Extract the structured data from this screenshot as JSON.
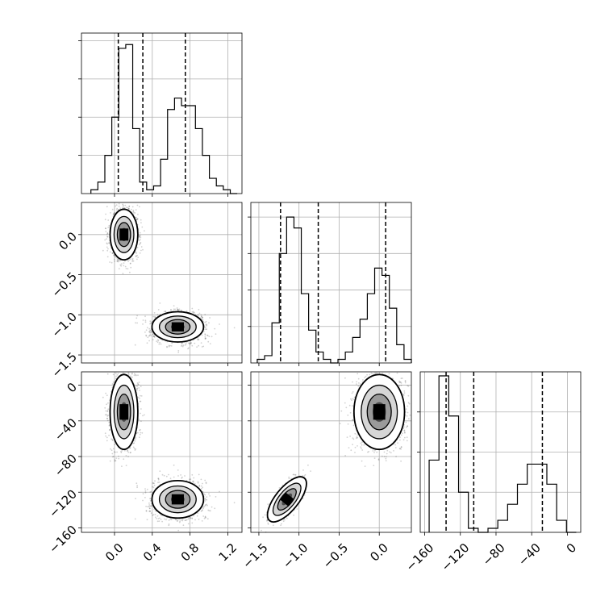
{
  "chart_data": {
    "type": "corner",
    "title": "",
    "grid": true,
    "parameters": [
      {
        "range": [
          -0.35,
          1.35
        ],
        "ticks": [
          0.0,
          0.4,
          0.8,
          1.2
        ],
        "tick_labels": [
          "0.0",
          "0.4",
          "0.8",
          "1.2"
        ],
        "quantiles": [
          0.04,
          0.3,
          0.75
        ],
        "hist_range": [
          -0.25,
          1.3
        ],
        "hist_counts": [
          1,
          3,
          10,
          20,
          38,
          39,
          17,
          3,
          1,
          2,
          9,
          22,
          25,
          23,
          23,
          17,
          10,
          4,
          2,
          1,
          0
        ],
        "hist_max": 42
      },
      {
        "range": [
          -1.6,
          0.4
        ],
        "ticks": [
          -1.5,
          -1.0,
          -0.5,
          0.0
        ],
        "tick_labels": [
          "−1.5",
          "−1.0",
          "−0.5",
          "0.0"
        ],
        "quantiles": [
          -1.23,
          -0.76,
          0.08
        ],
        "hist_range": [
          -1.52,
          0.4
        ],
        "hist_counts": [
          1,
          2,
          11,
          30,
          40,
          37,
          19,
          9,
          3,
          1,
          0,
          1,
          3,
          7,
          12,
          19,
          26,
          24,
          15,
          5,
          1
        ],
        "hist_max": 44
      },
      {
        "range": [
          -165,
          15
        ],
        "ticks": [
          -160,
          -120,
          -80,
          -40,
          0
        ],
        "tick_labels": [
          "−160",
          "−120",
          "−80",
          "−40",
          "0"
        ],
        "quantiles": [
          -136,
          -105,
          -28
        ],
        "hist_range": [
          -155,
          10
        ],
        "hist_counts": [
          18,
          39,
          29,
          10,
          1,
          0,
          1,
          3,
          7,
          12,
          17,
          17,
          12,
          3,
          0
        ],
        "hist_max": 40
      }
    ],
    "modes": [
      {
        "mean": [
          0.1,
          0.0,
          -30
        ],
        "sd": [
          0.07,
          0.15,
          20
        ],
        "corr": [
          [
            1,
            0,
            0
          ],
          [
            0,
            1,
            0
          ],
          [
            0,
            0,
            1
          ]
        ],
        "weight": 0.5
      },
      {
        "mean": [
          0.67,
          -1.15,
          -128
        ],
        "sd": [
          0.13,
          0.09,
          10
        ],
        "corr": [
          [
            1,
            0,
            0
          ],
          [
            0,
            1,
            0.7
          ],
          [
            0,
            0.7,
            1
          ]
        ],
        "weight": 0.5
      }
    ],
    "series": []
  }
}
